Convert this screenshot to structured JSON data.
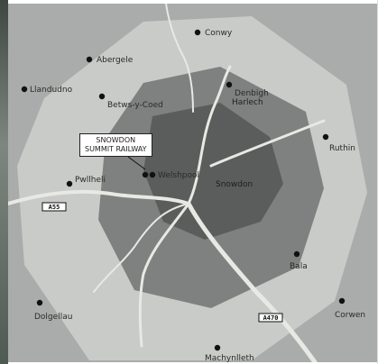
{
  "map": {
    "colors": {
      "outer_background": "#a9acab",
      "outer_zone": "#c9cbc8",
      "middle_zone": "#7e817f",
      "inner_zone": "#5a5d5b",
      "roads": "#e8e8e4",
      "markers": "#111111"
    },
    "callout": {
      "line1": "SNOWDON",
      "line2": "SUMMIT RAILWAY"
    },
    "towns": [
      {
        "name": "Conwy",
        "icon": "town-marker"
      },
      {
        "name": "Abergele",
        "icon": "town-marker"
      },
      {
        "name": "Llandudno",
        "icon": "town-marker"
      },
      {
        "name": "Betws-y-Coed",
        "icon": "town-marker"
      },
      {
        "name": "Denbigh",
        "icon": "town-marker"
      },
      {
        "name": "Ruthin",
        "icon": "town-marker"
      },
      {
        "name": "Bala",
        "icon": "town-marker"
      },
      {
        "name": "Corwen",
        "icon": "town-marker"
      },
      {
        "name": "Dolgellau",
        "icon": "town-marker"
      },
      {
        "name": "Machynlleth",
        "icon": "town-marker"
      },
      {
        "name": "Pwllheli",
        "icon": "town-marker"
      },
      {
        "name": "Welshpool",
        "icon": "town-marker"
      }
    ],
    "zone_labels": [
      "Snowdon",
      "Harlech"
    ],
    "road_shields": [
      "A55",
      "A470"
    ]
  }
}
